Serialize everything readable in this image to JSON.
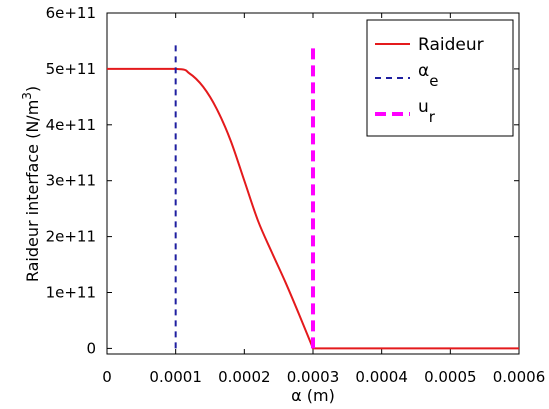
{
  "chart_data": {
    "type": "line",
    "xlabel": "α (m)",
    "ylabel": "Raideur interface (N/m³)",
    "ylabel_parts": {
      "main": "Raideur interface (N/m",
      "sup": "3",
      "close": ")"
    },
    "xlim": [
      0,
      0.0006
    ],
    "ylim": [
      -10000000000,
      600000000000
    ],
    "x_ticks": [
      0,
      0.0001,
      0.0002,
      0.0003,
      0.0004,
      0.0005,
      0.0006
    ],
    "x_tick_labels": [
      "0",
      "0.0001",
      "0.0002",
      "0.0003",
      "0.0004",
      "0.0005",
      "0.0006"
    ],
    "y_ticks": [
      0,
      100000000000,
      200000000000,
      300000000000,
      400000000000,
      500000000000,
      600000000000
    ],
    "y_tick_labels": [
      "0",
      "1e+11",
      "2e+11",
      "3e+11",
      "4e+11",
      "5e+11",
      "6e+11"
    ],
    "grid": false,
    "legend_position": "top-right",
    "series": [
      {
        "name": "Raideur",
        "color": "#e41a1c",
        "style": "solid",
        "x": [
          0,
          0.0001,
          0.00012,
          0.00014,
          0.00016,
          0.00018,
          0.0002,
          0.00022,
          0.00024,
          0.00026,
          0.00028,
          0.0003,
          0.0006
        ],
        "y": [
          500000000000,
          500000000000,
          492000000000,
          468000000000,
          428000000000,
          372000000000,
          300000000000,
          228000000000,
          172000000000,
          118000000000,
          60000000000,
          0,
          0
        ]
      },
      {
        "name": "α",
        "name_sub": "e",
        "color": "#1f1fa0",
        "style": "dashed",
        "x": [
          0.0001,
          0.0001
        ],
        "y": [
          0,
          550000000000
        ]
      },
      {
        "name": "u",
        "name_sub": "r",
        "color": "#ff00ff",
        "style": "dashed-thick",
        "x": [
          0.0003,
          0.0003
        ],
        "y": [
          0,
          545000000000
        ]
      }
    ]
  }
}
